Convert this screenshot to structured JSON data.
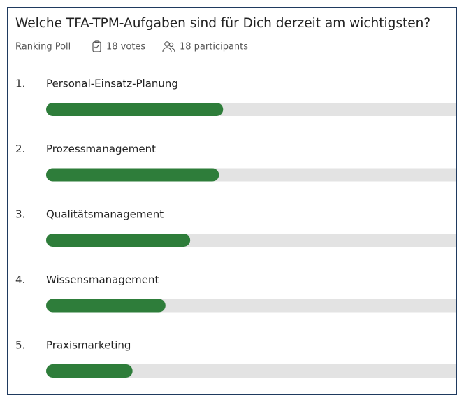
{
  "chart_data": {
    "type": "bar",
    "title": "Welche TFA-TPM-Aufgaben sind für Dich derzeit am wichtigsten?",
    "subtitle": "Ranking Poll",
    "votes": "18 votes",
    "participants": "18 participants",
    "ranks": [
      "1.",
      "2.",
      "3.",
      "4.",
      "5."
    ],
    "categories": [
      "Personal-Einsatz-Planung",
      "Prozessmanagement",
      "Qualitätsmanagement",
      "Wissensmanagement",
      "Praxismarketing"
    ],
    "values": [
      43,
      42,
      35,
      29,
      21
    ],
    "xlim": [
      0,
      100
    ],
    "color": "#2e7d3a",
    "track_color": "#e3e3e3"
  }
}
